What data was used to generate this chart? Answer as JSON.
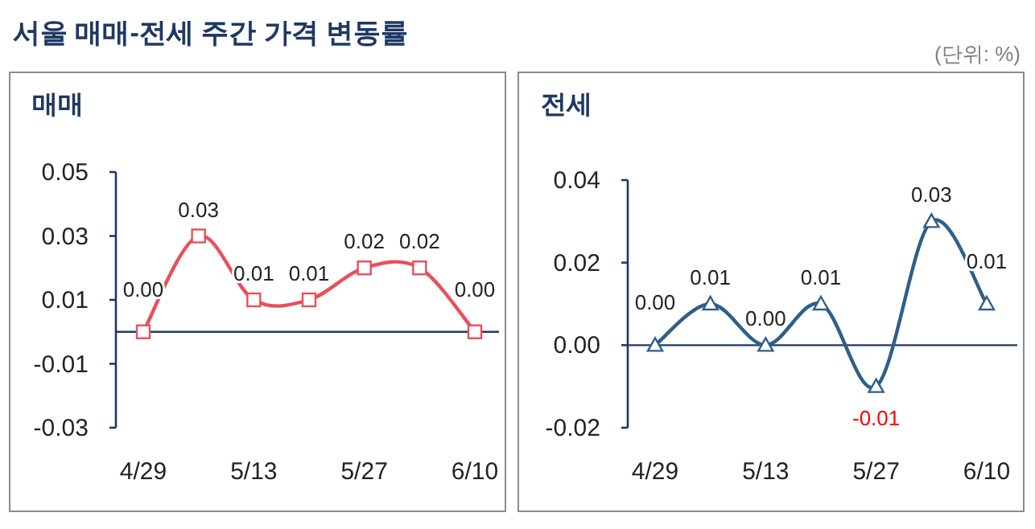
{
  "chart_data": [
    {
      "type": "line",
      "title": "서울 매매-전세 주간 가격 변동률",
      "subtitle": "매매",
      "categories": [
        "4/29",
        null,
        "5/13",
        null,
        "5/27",
        null,
        "6/10"
      ],
      "series": [
        {
          "color": "#e8505b",
          "values": [
            0,
            0.03,
            0.01,
            0.01,
            0.02,
            0.02,
            0
          ],
          "value_labels": [
            "0.00",
            "0.03",
            "0.01",
            "0.01",
            "0.02",
            "0.02",
            "0.00"
          ]
        }
      ],
      "ylim": [
        -0.03,
        0.05
      ],
      "yticks": [
        -0.03,
        -0.01,
        0.01,
        0.03,
        0.05
      ],
      "ref_lines": [
        {
          "axis": "y",
          "value": 0,
          "color": "#1f3864"
        }
      ],
      "marker": "square"
    },
    {
      "type": "line",
      "subtitle": "전세",
      "annotations": [
        "(단위: %)"
      ],
      "categories": [
        "4/29",
        null,
        "5/13",
        null,
        "5/27",
        null,
        "6/10"
      ],
      "series": [
        {
          "color": "#2e5f8a",
          "values": [
            0,
            0.01,
            0,
            0.01,
            -0.01,
            0.03,
            0.01
          ],
          "value_labels": [
            "0.00",
            "0.01",
            "0.00",
            "0.01",
            "-0.01",
            "0.03",
            "0.01"
          ]
        }
      ],
      "ylim": [
        -0.02,
        0.04
      ],
      "yticks": [
        {
          "value": -0.02,
          "label": "-0.02"
        },
        {
          "value": 0,
          "label": "0.00"
        },
        {
          "value": 0.02,
          "label": "0.02"
        },
        {
          "value": 0.04,
          "label": "0.04"
        }
      ],
      "ref_lines": [
        {
          "axis": "y",
          "value": 0,
          "color": "#1f3864"
        }
      ],
      "marker": "triangle"
    }
  ]
}
